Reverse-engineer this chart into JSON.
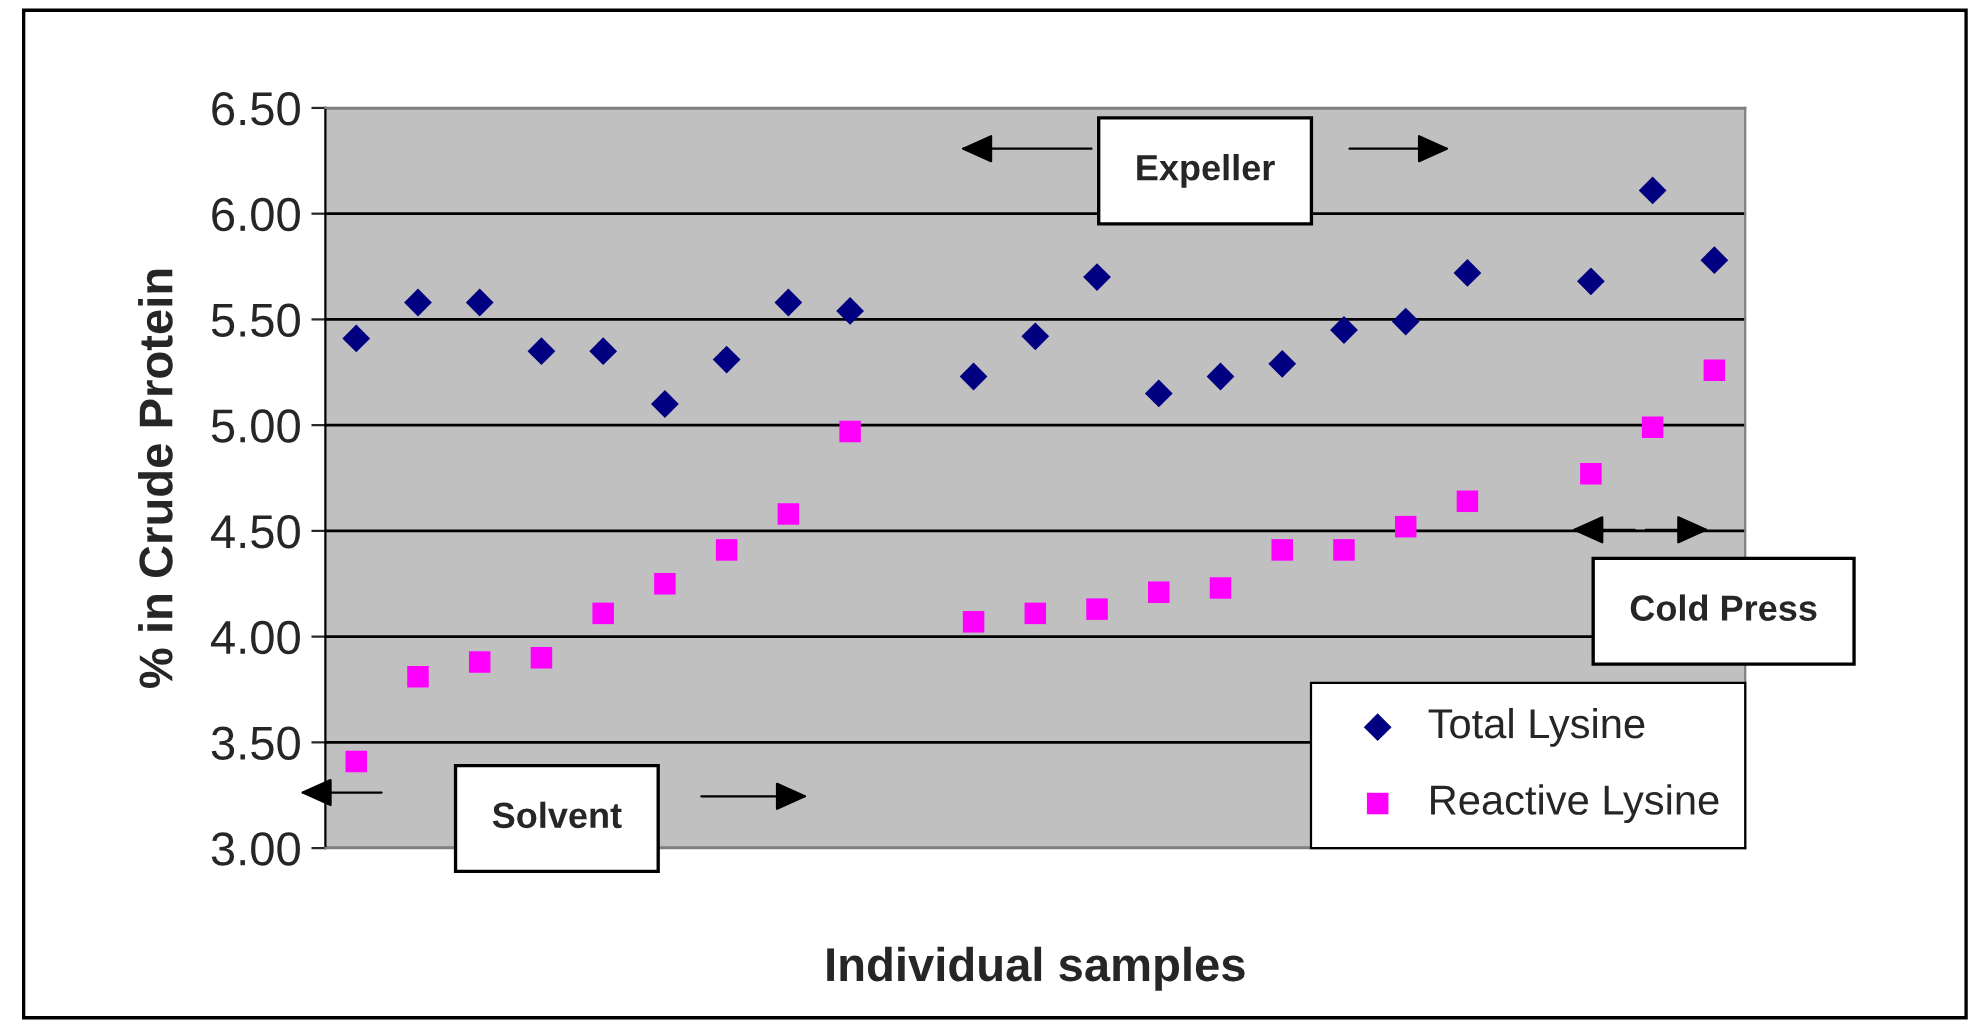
{
  "chart_data": {
    "type": "scatter",
    "xlabel": "Individual samples",
    "ylabel": "% in Crude Protein",
    "categories": [
      null,
      null,
      null,
      null,
      null,
      null,
      null,
      null,
      null,
      null,
      null,
      null,
      null,
      null,
      null,
      null,
      null,
      null,
      null,
      null,
      null,
      null,
      null
    ],
    "series": [
      {
        "name": "Total Lysine",
        "color": "#000080",
        "marker": "diamond",
        "values": [
          5.41,
          5.58,
          5.58,
          5.35,
          5.35,
          5.1,
          5.31,
          5.58,
          5.54,
          null,
          5.23,
          5.42,
          5.7,
          5.15,
          5.23,
          5.29,
          5.45,
          5.49,
          5.72,
          null,
          5.68,
          6.11,
          5.78
        ]
      },
      {
        "name": "Reactive Lysine",
        "color": "#ff00ff",
        "marker": "square",
        "values": [
          3.41,
          3.81,
          3.88,
          3.9,
          4.11,
          4.25,
          4.41,
          4.58,
          4.97,
          null,
          4.07,
          4.11,
          4.13,
          4.21,
          4.23,
          4.41,
          4.41,
          4.52,
          4.64,
          null,
          4.77,
          4.99,
          5.26
        ]
      }
    ],
    "annotations": [
      "Solvent",
      "Expeller",
      "Cold Press"
    ],
    "ylim": [
      3.0,
      6.5
    ],
    "yticks": [
      {
        "value": 3.0,
        "label": "3.00"
      },
      {
        "value": 3.5,
        "label": "3.50"
      },
      {
        "value": 4.0,
        "label": "4.00"
      },
      {
        "value": 4.5,
        "label": "4.50"
      },
      {
        "value": 5.0,
        "label": "5.00"
      },
      {
        "value": 5.5,
        "label": "5.50"
      },
      {
        "value": 6.0,
        "label": "6.00"
      },
      {
        "value": 6.5,
        "label": "6.50"
      }
    ],
    "grid": "y",
    "legend": "bottom right"
  }
}
